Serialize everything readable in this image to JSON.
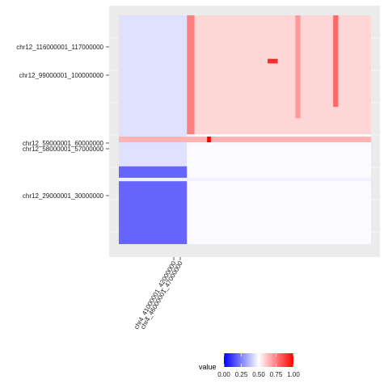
{
  "chart_data": {
    "type": "heatmap",
    "title": "",
    "xlabel": "",
    "ylabel": "",
    "x_tick_labels": [
      "chr4_41000001_42000000",
      "chr4_46000001_47000000"
    ],
    "y_tick_labels": [
      "chr12_116000001_117000000",
      "chr12_99000001_100000000",
      "chr12_59000001_60000000",
      "chr12_58000001_57000000",
      "chr12_29000001_30000000"
    ],
    "legend": {
      "title": "value",
      "ticks": [
        "0.00",
        "0.25",
        "0.50",
        "0.75",
        "1.00"
      ],
      "colors": {
        "low": "#0000ff",
        "mid": "#ffffff",
        "high": "#ff0000"
      },
      "range": [
        0,
        1
      ],
      "position": "bottom"
    },
    "background": "#ebebeb",
    "grid": true,
    "regions": [
      {
        "name": "left-block",
        "cols": [
          0.0,
          0.27
        ],
        "rows": [
          0.0,
          1.0
        ],
        "value": 0.44
      },
      {
        "name": "right-upper",
        "cols": [
          0.27,
          1.0
        ],
        "rows": [
          0.0,
          0.52
        ],
        "value": 0.58
      },
      {
        "name": "right-lower",
        "cols": [
          0.27,
          1.0
        ],
        "rows": [
          0.52,
          1.0
        ],
        "value": 0.49
      },
      {
        "name": "left-lower",
        "cols": [
          0.0,
          0.27
        ],
        "rows": [
          0.66,
          1.0
        ],
        "value": 0.2
      },
      {
        "name": "row-band-59Mb",
        "cols": [
          0.0,
          1.0
        ],
        "rows": [
          0.53,
          0.555
        ],
        "value": 0.65
      },
      {
        "name": "row-band-30Mb",
        "cols": [
          0.0,
          1.0
        ],
        "rows": [
          0.71,
          0.725
        ],
        "value": 0.47
      },
      {
        "name": "hotspot-1",
        "cols": [
          0.59,
          0.63
        ],
        "rows": [
          0.19,
          0.21
        ],
        "value": 0.92
      },
      {
        "name": "hotspot-2",
        "cols": [
          0.35,
          0.365
        ],
        "rows": [
          0.53,
          0.555
        ],
        "value": 1.0
      },
      {
        "name": "col-band-1",
        "cols": [
          0.27,
          0.3
        ],
        "rows": [
          0.0,
          0.52
        ],
        "value": 0.75
      },
      {
        "name": "col-band-2",
        "cols": [
          0.85,
          0.87
        ],
        "rows": [
          0.0,
          0.4
        ],
        "value": 0.8
      },
      {
        "name": "col-band-3",
        "cols": [
          0.7,
          0.72
        ],
        "rows": [
          0.0,
          0.45
        ],
        "value": 0.7
      }
    ]
  }
}
